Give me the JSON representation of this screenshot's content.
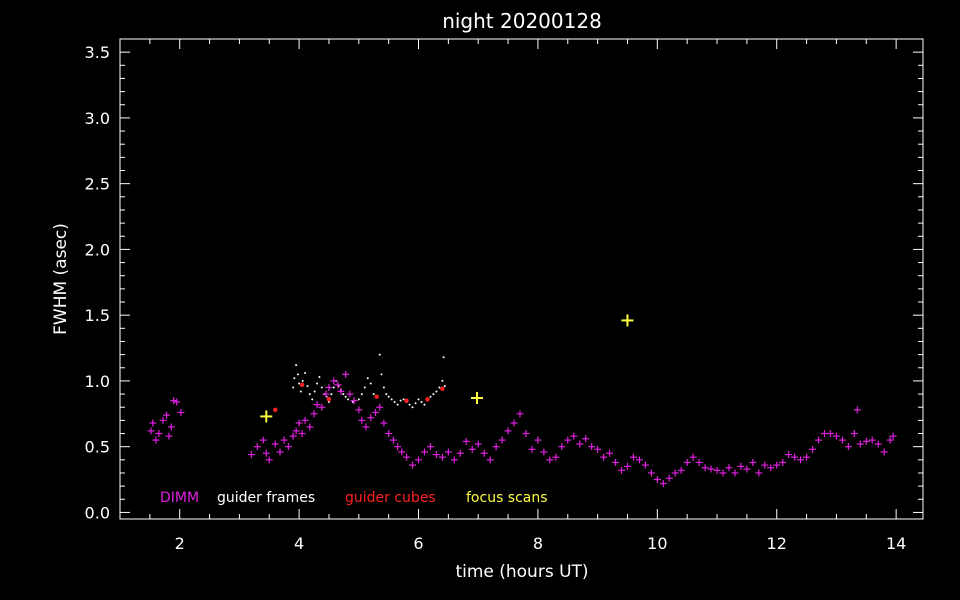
{
  "chart_data": {
    "type": "scatter",
    "title": "night 20200128",
    "xlabel": "time (hours UT)",
    "ylabel": "FWHM (asec)",
    "xlim": [
      1.0,
      14.45
    ],
    "ylim": [
      -0.05,
      3.6
    ],
    "xticks": [
      "2",
      "4",
      "6",
      "8",
      "10",
      "12",
      "14"
    ],
    "yticks": [
      "0.0",
      "0.5",
      "1.0",
      "1.5",
      "2.0",
      "2.5",
      "3.0",
      "3.5"
    ],
    "legend_position": "bottom-left inside plot",
    "legend": [
      {
        "label": "DIMM",
        "color": "#e020e0"
      },
      {
        "label": "guider frames",
        "color": "#ffffff"
      },
      {
        "label": "guider cubes",
        "color": "#ff2020"
      },
      {
        "label": "focus scans",
        "color": "#ffff40"
      }
    ],
    "series": [
      {
        "name": "DIMM",
        "marker": "plus",
        "color": "#e020e0",
        "points": [
          [
            1.52,
            0.62
          ],
          [
            1.55,
            0.68
          ],
          [
            1.6,
            0.55
          ],
          [
            1.65,
            0.6
          ],
          [
            1.72,
            0.7
          ],
          [
            1.78,
            0.74
          ],
          [
            1.82,
            0.58
          ],
          [
            1.86,
            0.65
          ],
          [
            1.9,
            0.85
          ],
          [
            1.95,
            0.84
          ],
          [
            2.02,
            0.76
          ],
          [
            3.2,
            0.44
          ],
          [
            3.3,
            0.5
          ],
          [
            3.4,
            0.55
          ],
          [
            3.45,
            0.45
          ],
          [
            3.5,
            0.4
          ],
          [
            3.6,
            0.52
          ],
          [
            3.68,
            0.46
          ],
          [
            3.75,
            0.55
          ],
          [
            3.82,
            0.5
          ],
          [
            3.9,
            0.58
          ],
          [
            3.95,
            0.62
          ],
          [
            4.0,
            0.68
          ],
          [
            4.05,
            0.6
          ],
          [
            4.1,
            0.7
          ],
          [
            4.18,
            0.65
          ],
          [
            4.25,
            0.75
          ],
          [
            4.3,
            0.82
          ],
          [
            4.38,
            0.8
          ],
          [
            4.45,
            0.9
          ],
          [
            4.5,
            0.95
          ],
          [
            4.58,
            1.0
          ],
          [
            4.65,
            0.97
          ],
          [
            4.7,
            0.92
          ],
          [
            4.78,
            1.05
          ],
          [
            4.85,
            0.9
          ],
          [
            4.92,
            0.85
          ],
          [
            5.0,
            0.78
          ],
          [
            5.05,
            0.7
          ],
          [
            5.12,
            0.65
          ],
          [
            5.2,
            0.72
          ],
          [
            5.28,
            0.76
          ],
          [
            5.35,
            0.8
          ],
          [
            5.42,
            0.68
          ],
          [
            5.5,
            0.6
          ],
          [
            5.58,
            0.55
          ],
          [
            5.65,
            0.5
          ],
          [
            5.72,
            0.46
          ],
          [
            5.8,
            0.42
          ],
          [
            5.9,
            0.36
          ],
          [
            6.0,
            0.4
          ],
          [
            6.1,
            0.46
          ],
          [
            6.2,
            0.5
          ],
          [
            6.3,
            0.44
          ],
          [
            6.4,
            0.42
          ],
          [
            6.5,
            0.46
          ],
          [
            6.6,
            0.4
          ],
          [
            6.7,
            0.45
          ],
          [
            6.8,
            0.54
          ],
          [
            6.9,
            0.48
          ],
          [
            7.0,
            0.52
          ],
          [
            7.1,
            0.45
          ],
          [
            7.2,
            0.4
          ],
          [
            7.3,
            0.5
          ],
          [
            7.4,
            0.55
          ],
          [
            7.5,
            0.62
          ],
          [
            7.6,
            0.68
          ],
          [
            7.7,
            0.75
          ],
          [
            7.8,
            0.6
          ],
          [
            7.9,
            0.48
          ],
          [
            8.0,
            0.55
          ],
          [
            8.1,
            0.46
          ],
          [
            8.2,
            0.4
          ],
          [
            8.3,
            0.42
          ],
          [
            8.4,
            0.5
          ],
          [
            8.5,
            0.55
          ],
          [
            8.6,
            0.58
          ],
          [
            8.7,
            0.52
          ],
          [
            8.8,
            0.56
          ],
          [
            8.9,
            0.5
          ],
          [
            9.0,
            0.48
          ],
          [
            9.1,
            0.42
          ],
          [
            9.2,
            0.45
          ],
          [
            9.3,
            0.38
          ],
          [
            9.4,
            0.32
          ],
          [
            9.5,
            0.35
          ],
          [
            9.6,
            0.42
          ],
          [
            9.7,
            0.4
          ],
          [
            9.8,
            0.36
          ],
          [
            9.9,
            0.3
          ],
          [
            10.0,
            0.25
          ],
          [
            10.1,
            0.22
          ],
          [
            10.2,
            0.26
          ],
          [
            10.3,
            0.3
          ],
          [
            10.4,
            0.32
          ],
          [
            10.5,
            0.38
          ],
          [
            10.6,
            0.42
          ],
          [
            10.7,
            0.38
          ],
          [
            10.8,
            0.34
          ],
          [
            10.9,
            0.33
          ],
          [
            11.0,
            0.32
          ],
          [
            11.1,
            0.3
          ],
          [
            11.2,
            0.34
          ],
          [
            11.3,
            0.3
          ],
          [
            11.4,
            0.35
          ],
          [
            11.5,
            0.33
          ],
          [
            11.6,
            0.38
          ],
          [
            11.7,
            0.3
          ],
          [
            11.8,
            0.36
          ],
          [
            11.9,
            0.34
          ],
          [
            12.0,
            0.36
          ],
          [
            12.1,
            0.38
          ],
          [
            12.2,
            0.44
          ],
          [
            12.3,
            0.42
          ],
          [
            12.4,
            0.4
          ],
          [
            12.5,
            0.42
          ],
          [
            12.6,
            0.48
          ],
          [
            12.7,
            0.55
          ],
          [
            12.8,
            0.6
          ],
          [
            12.9,
            0.6
          ],
          [
            13.0,
            0.58
          ],
          [
            13.1,
            0.55
          ],
          [
            13.2,
            0.5
          ],
          [
            13.3,
            0.6
          ],
          [
            13.35,
            0.78
          ],
          [
            13.4,
            0.52
          ],
          [
            13.5,
            0.54
          ],
          [
            13.6,
            0.55
          ],
          [
            13.7,
            0.52
          ],
          [
            13.8,
            0.46
          ],
          [
            13.9,
            0.55
          ],
          [
            13.95,
            0.58
          ]
        ]
      },
      {
        "name": "guider frames",
        "marker": "dot",
        "color": "#ffffff",
        "points": [
          [
            3.9,
            0.95
          ],
          [
            3.92,
            1.02
          ],
          [
            3.95,
            1.12
          ],
          [
            3.98,
            1.05
          ],
          [
            4.0,
            0.98
          ],
          [
            4.03,
            0.92
          ],
          [
            4.06,
            1.0
          ],
          [
            4.1,
            1.06
          ],
          [
            4.14,
            0.96
          ],
          [
            4.18,
            0.9
          ],
          [
            4.22,
            0.86
          ],
          [
            4.26,
            0.92
          ],
          [
            4.3,
            0.98
          ],
          [
            4.34,
            1.03
          ],
          [
            4.38,
            0.95
          ],
          [
            4.42,
            0.9
          ],
          [
            4.46,
            0.88
          ],
          [
            4.5,
            0.84
          ],
          [
            4.54,
            0.9
          ],
          [
            4.58,
            0.95
          ],
          [
            4.62,
            1.0
          ],
          [
            4.66,
            0.96
          ],
          [
            4.7,
            0.93
          ],
          [
            4.74,
            0.9
          ],
          [
            4.78,
            0.88
          ],
          [
            4.82,
            0.86
          ],
          [
            4.9,
            0.84
          ],
          [
            5.0,
            0.86
          ],
          [
            5.05,
            0.9
          ],
          [
            5.1,
            0.95
          ],
          [
            5.15,
            1.02
          ],
          [
            5.2,
            0.98
          ],
          [
            5.25,
            0.9
          ],
          [
            5.3,
            0.88
          ],
          [
            5.35,
            1.2
          ],
          [
            5.38,
            1.05
          ],
          [
            5.42,
            0.95
          ],
          [
            5.46,
            0.9
          ],
          [
            5.5,
            0.88
          ],
          [
            5.55,
            0.86
          ],
          [
            5.6,
            0.84
          ],
          [
            5.65,
            0.82
          ],
          [
            5.7,
            0.85
          ],
          [
            5.75,
            0.86
          ],
          [
            5.8,
            0.84
          ],
          [
            5.85,
            0.82
          ],
          [
            5.9,
            0.8
          ],
          [
            5.95,
            0.83
          ],
          [
            6.0,
            0.86
          ],
          [
            6.05,
            0.84
          ],
          [
            6.1,
            0.82
          ],
          [
            6.15,
            0.85
          ],
          [
            6.2,
            0.88
          ],
          [
            6.25,
            0.9
          ],
          [
            6.3,
            0.92
          ],
          [
            6.35,
            0.95
          ],
          [
            6.4,
            1.0
          ],
          [
            6.42,
            1.18
          ],
          [
            6.44,
            0.96
          ]
        ]
      },
      {
        "name": "guider cubes",
        "marker": "dot",
        "color": "#ff2020",
        "points": [
          [
            3.6,
            0.78
          ],
          [
            4.05,
            0.97
          ],
          [
            4.5,
            0.86
          ],
          [
            5.3,
            0.88
          ],
          [
            5.8,
            0.85
          ],
          [
            6.15,
            0.86
          ],
          [
            6.4,
            0.94
          ]
        ]
      },
      {
        "name": "focus scans",
        "marker": "plus",
        "color": "#ffff40",
        "points": [
          [
            3.45,
            0.73
          ],
          [
            6.98,
            0.87
          ],
          [
            9.5,
            1.46
          ]
        ]
      }
    ]
  }
}
